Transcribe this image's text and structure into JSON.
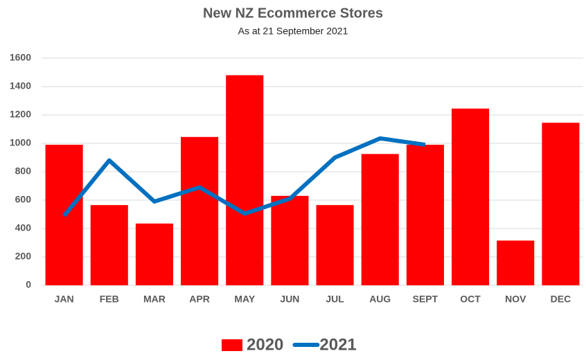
{
  "chart_data": {
    "type": "bar",
    "title": "New NZ Ecommerce Stores",
    "subtitle": "As at 21 September 2021",
    "categories": [
      "JAN",
      "FEB",
      "MAR",
      "APR",
      "MAY",
      "JUN",
      "JUL",
      "AUG",
      "SEPT",
      "OCT",
      "NOV",
      "DEC"
    ],
    "series": [
      {
        "name": "2020",
        "mark": "bar",
        "color": "#ff0000",
        "values": [
          990,
          565,
          435,
          1045,
          1480,
          630,
          565,
          925,
          990,
          1245,
          315,
          1145
        ]
      },
      {
        "name": "2021",
        "mark": "line",
        "color": "#0070c0",
        "values": [
          490,
          880,
          590,
          690,
          505,
          610,
          900,
          1035,
          990,
          null,
          null,
          null
        ]
      }
    ],
    "ylim": [
      0,
      1600
    ],
    "yticks": [
      0,
      200,
      400,
      600,
      800,
      1000,
      1200,
      1400,
      1600
    ],
    "grid": true,
    "legend": "bottom"
  }
}
